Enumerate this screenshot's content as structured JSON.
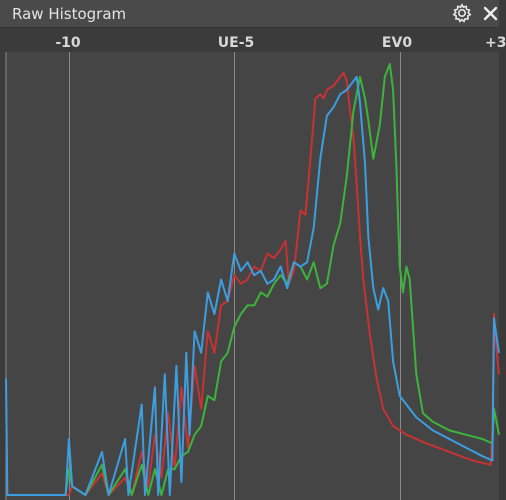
{
  "panel": {
    "title": "Raw Histogram",
    "settings_icon": "gear-icon",
    "close_icon": "close-icon",
    "colors": {
      "titlebar": "#4a4a4a",
      "background": "#3b3b3b",
      "plot_background": "#454545",
      "gridline": "#8a8a8a",
      "red": "#c83232",
      "green": "#3cb43c",
      "blue": "#3c9ee0"
    }
  },
  "chart_data": {
    "type": "line",
    "x_ticks": [
      {
        "label": "-10",
        "x": -10
      },
      {
        "label": "UE-5",
        "x": -5
      },
      {
        "label": "EV0",
        "x": 0
      },
      {
        "label": "+3",
        "x": 3
      }
    ],
    "xlim": [
      -11.9,
      3
    ],
    "ylim": [
      0,
      1
    ],
    "grid": true,
    "legend": "none",
    "series": [
      {
        "color": "#c83232",
        "points": [
          [
            -11.9,
            0.27
          ],
          [
            -11.86,
            0
          ],
          [
            -10.0,
            0
          ],
          [
            -9.9,
            0.02
          ],
          [
            -9.5,
            0
          ],
          [
            -9.0,
            0.05
          ],
          [
            -8.8,
            0
          ],
          [
            -8.3,
            0.04
          ],
          [
            -8.1,
            0
          ],
          [
            -7.8,
            0.1
          ],
          [
            -7.6,
            0.02
          ],
          [
            -7.4,
            0.14
          ],
          [
            -7.2,
            0.04
          ],
          [
            -7.0,
            0.19
          ],
          [
            -6.8,
            0.06
          ],
          [
            -6.6,
            0.25
          ],
          [
            -6.4,
            0.11
          ],
          [
            -6.2,
            0.3
          ],
          [
            -6.0,
            0.2
          ],
          [
            -5.8,
            0.38
          ],
          [
            -5.6,
            0.33
          ],
          [
            -5.4,
            0.44
          ],
          [
            -5.2,
            0.45
          ],
          [
            -5.0,
            0.51
          ],
          [
            -4.8,
            0.49
          ],
          [
            -4.6,
            0.5
          ],
          [
            -4.4,
            0.53
          ],
          [
            -4.2,
            0.52
          ],
          [
            -4.0,
            0.56
          ],
          [
            -3.8,
            0.55
          ],
          [
            -3.6,
            0.57
          ],
          [
            -3.45,
            0.59
          ],
          [
            -3.35,
            0.49
          ],
          [
            -3.2,
            0.52
          ],
          [
            -3.0,
            0.66
          ],
          [
            -2.85,
            0.65
          ],
          [
            -2.7,
            0.78
          ],
          [
            -2.55,
            0.92
          ],
          [
            -2.4,
            0.93
          ],
          [
            -2.3,
            0.92
          ],
          [
            -2.2,
            0.94
          ],
          [
            -2.0,
            0.95
          ],
          [
            -1.8,
            0.97
          ],
          [
            -1.7,
            0.98
          ],
          [
            -1.6,
            0.96
          ],
          [
            -1.5,
            0.89
          ],
          [
            -1.4,
            0.83
          ],
          [
            -1.3,
            0.72
          ],
          [
            -1.2,
            0.6
          ],
          [
            -1.1,
            0.5
          ],
          [
            -0.9,
            0.37
          ],
          [
            -0.7,
            0.27
          ],
          [
            -0.5,
            0.2
          ],
          [
            -0.2,
            0.16
          ],
          [
            0.2,
            0.14
          ],
          [
            0.8,
            0.12
          ],
          [
            1.5,
            0.1
          ],
          [
            2.2,
            0.08
          ],
          [
            2.75,
            0.07
          ],
          [
            2.8,
            0.15
          ],
          [
            2.85,
            0.42
          ],
          [
            2.9,
            0.36
          ],
          [
            3.0,
            0.28
          ]
        ]
      },
      {
        "color": "#3cb43c",
        "points": [
          [
            -11.9,
            0
          ],
          [
            -10.1,
            0
          ],
          [
            -10.0,
            0.06
          ],
          [
            -9.9,
            0.02
          ],
          [
            -9.5,
            0
          ],
          [
            -9.0,
            0.07
          ],
          [
            -8.8,
            0
          ],
          [
            -8.3,
            0.06
          ],
          [
            -8.1,
            0
          ],
          [
            -7.8,
            0.07
          ],
          [
            -7.6,
            0
          ],
          [
            -7.4,
            0.06
          ],
          [
            -7.2,
            0
          ],
          [
            -7.0,
            0.06
          ],
          [
            -6.8,
            0.06
          ],
          [
            -6.6,
            0.09
          ],
          [
            -6.4,
            0.1
          ],
          [
            -6.2,
            0.14
          ],
          [
            -6.0,
            0.16
          ],
          [
            -5.8,
            0.23
          ],
          [
            -5.6,
            0.22
          ],
          [
            -5.4,
            0.31
          ],
          [
            -5.2,
            0.33
          ],
          [
            -5.0,
            0.39
          ],
          [
            -4.8,
            0.42
          ],
          [
            -4.6,
            0.44
          ],
          [
            -4.4,
            0.44
          ],
          [
            -4.2,
            0.47
          ],
          [
            -4.0,
            0.46
          ],
          [
            -3.8,
            0.49
          ],
          [
            -3.6,
            0.51
          ],
          [
            -3.4,
            0.49
          ],
          [
            -3.2,
            0.54
          ],
          [
            -3.0,
            0.53
          ],
          [
            -2.8,
            0.5
          ],
          [
            -2.6,
            0.54
          ],
          [
            -2.4,
            0.48
          ],
          [
            -2.2,
            0.49
          ],
          [
            -2.0,
            0.58
          ],
          [
            -1.8,
            0.63
          ],
          [
            -1.6,
            0.74
          ],
          [
            -1.4,
            0.89
          ],
          [
            -1.2,
            0.97
          ],
          [
            -1.05,
            0.92
          ],
          [
            -0.95,
            0.87
          ],
          [
            -0.8,
            0.78
          ],
          [
            -0.6,
            0.86
          ],
          [
            -0.45,
            0.97
          ],
          [
            -0.3,
            1.0
          ],
          [
            -0.2,
            0.94
          ],
          [
            -0.1,
            0.76
          ],
          [
            0.0,
            0.53
          ],
          [
            0.1,
            0.47
          ],
          [
            0.2,
            0.53
          ],
          [
            0.3,
            0.5
          ],
          [
            0.5,
            0.28
          ],
          [
            0.7,
            0.19
          ],
          [
            1.0,
            0.17
          ],
          [
            1.5,
            0.15
          ],
          [
            2.0,
            0.14
          ],
          [
            2.5,
            0.13
          ],
          [
            2.8,
            0.12
          ],
          [
            2.85,
            0.2
          ],
          [
            2.9,
            0.18
          ],
          [
            3.0,
            0.14
          ]
        ]
      },
      {
        "color": "#3c9ee0",
        "points": [
          [
            -11.9,
            0.27
          ],
          [
            -11.86,
            0
          ],
          [
            -10.1,
            0
          ],
          [
            -10.0,
            0.13
          ],
          [
            -9.9,
            0.02
          ],
          [
            -9.5,
            0
          ],
          [
            -9.0,
            0.1
          ],
          [
            -8.8,
            0
          ],
          [
            -8.3,
            0.13
          ],
          [
            -8.2,
            0
          ],
          [
            -7.8,
            0.21
          ],
          [
            -7.7,
            0
          ],
          [
            -7.4,
            0.25
          ],
          [
            -7.3,
            0
          ],
          [
            -7.1,
            0.28
          ],
          [
            -6.95,
            0
          ],
          [
            -6.75,
            0.3
          ],
          [
            -6.6,
            0.03
          ],
          [
            -6.45,
            0.33
          ],
          [
            -6.35,
            0.14
          ],
          [
            -6.2,
            0.38
          ],
          [
            -6.0,
            0.33
          ],
          [
            -5.8,
            0.47
          ],
          [
            -5.6,
            0.42
          ],
          [
            -5.4,
            0.5
          ],
          [
            -5.2,
            0.45
          ],
          [
            -5.0,
            0.56
          ],
          [
            -4.8,
            0.52
          ],
          [
            -4.6,
            0.54
          ],
          [
            -4.4,
            0.51
          ],
          [
            -4.2,
            0.52
          ],
          [
            -4.0,
            0.49
          ],
          [
            -3.8,
            0.5
          ],
          [
            -3.6,
            0.53
          ],
          [
            -3.4,
            0.48
          ],
          [
            -3.2,
            0.54
          ],
          [
            -3.0,
            0.53
          ],
          [
            -2.8,
            0.54
          ],
          [
            -2.6,
            0.62
          ],
          [
            -2.4,
            0.78
          ],
          [
            -2.2,
            0.88
          ],
          [
            -2.0,
            0.9
          ],
          [
            -1.8,
            0.93
          ],
          [
            -1.6,
            0.94
          ],
          [
            -1.4,
            0.96
          ],
          [
            -1.3,
            0.97
          ],
          [
            -1.2,
            0.91
          ],
          [
            -1.05,
            0.77
          ],
          [
            -0.95,
            0.6
          ],
          [
            -0.8,
            0.48
          ],
          [
            -0.65,
            0.43
          ],
          [
            -0.5,
            0.48
          ],
          [
            -0.35,
            0.45
          ],
          [
            -0.2,
            0.31
          ],
          [
            0.0,
            0.23
          ],
          [
            0.2,
            0.21
          ],
          [
            0.5,
            0.18
          ],
          [
            1.0,
            0.15
          ],
          [
            1.5,
            0.13
          ],
          [
            2.0,
            0.11
          ],
          [
            2.5,
            0.09
          ],
          [
            2.8,
            0.08
          ],
          [
            2.85,
            0.41
          ],
          [
            2.9,
            0.38
          ],
          [
            3.0,
            0.33
          ]
        ]
      }
    ]
  }
}
